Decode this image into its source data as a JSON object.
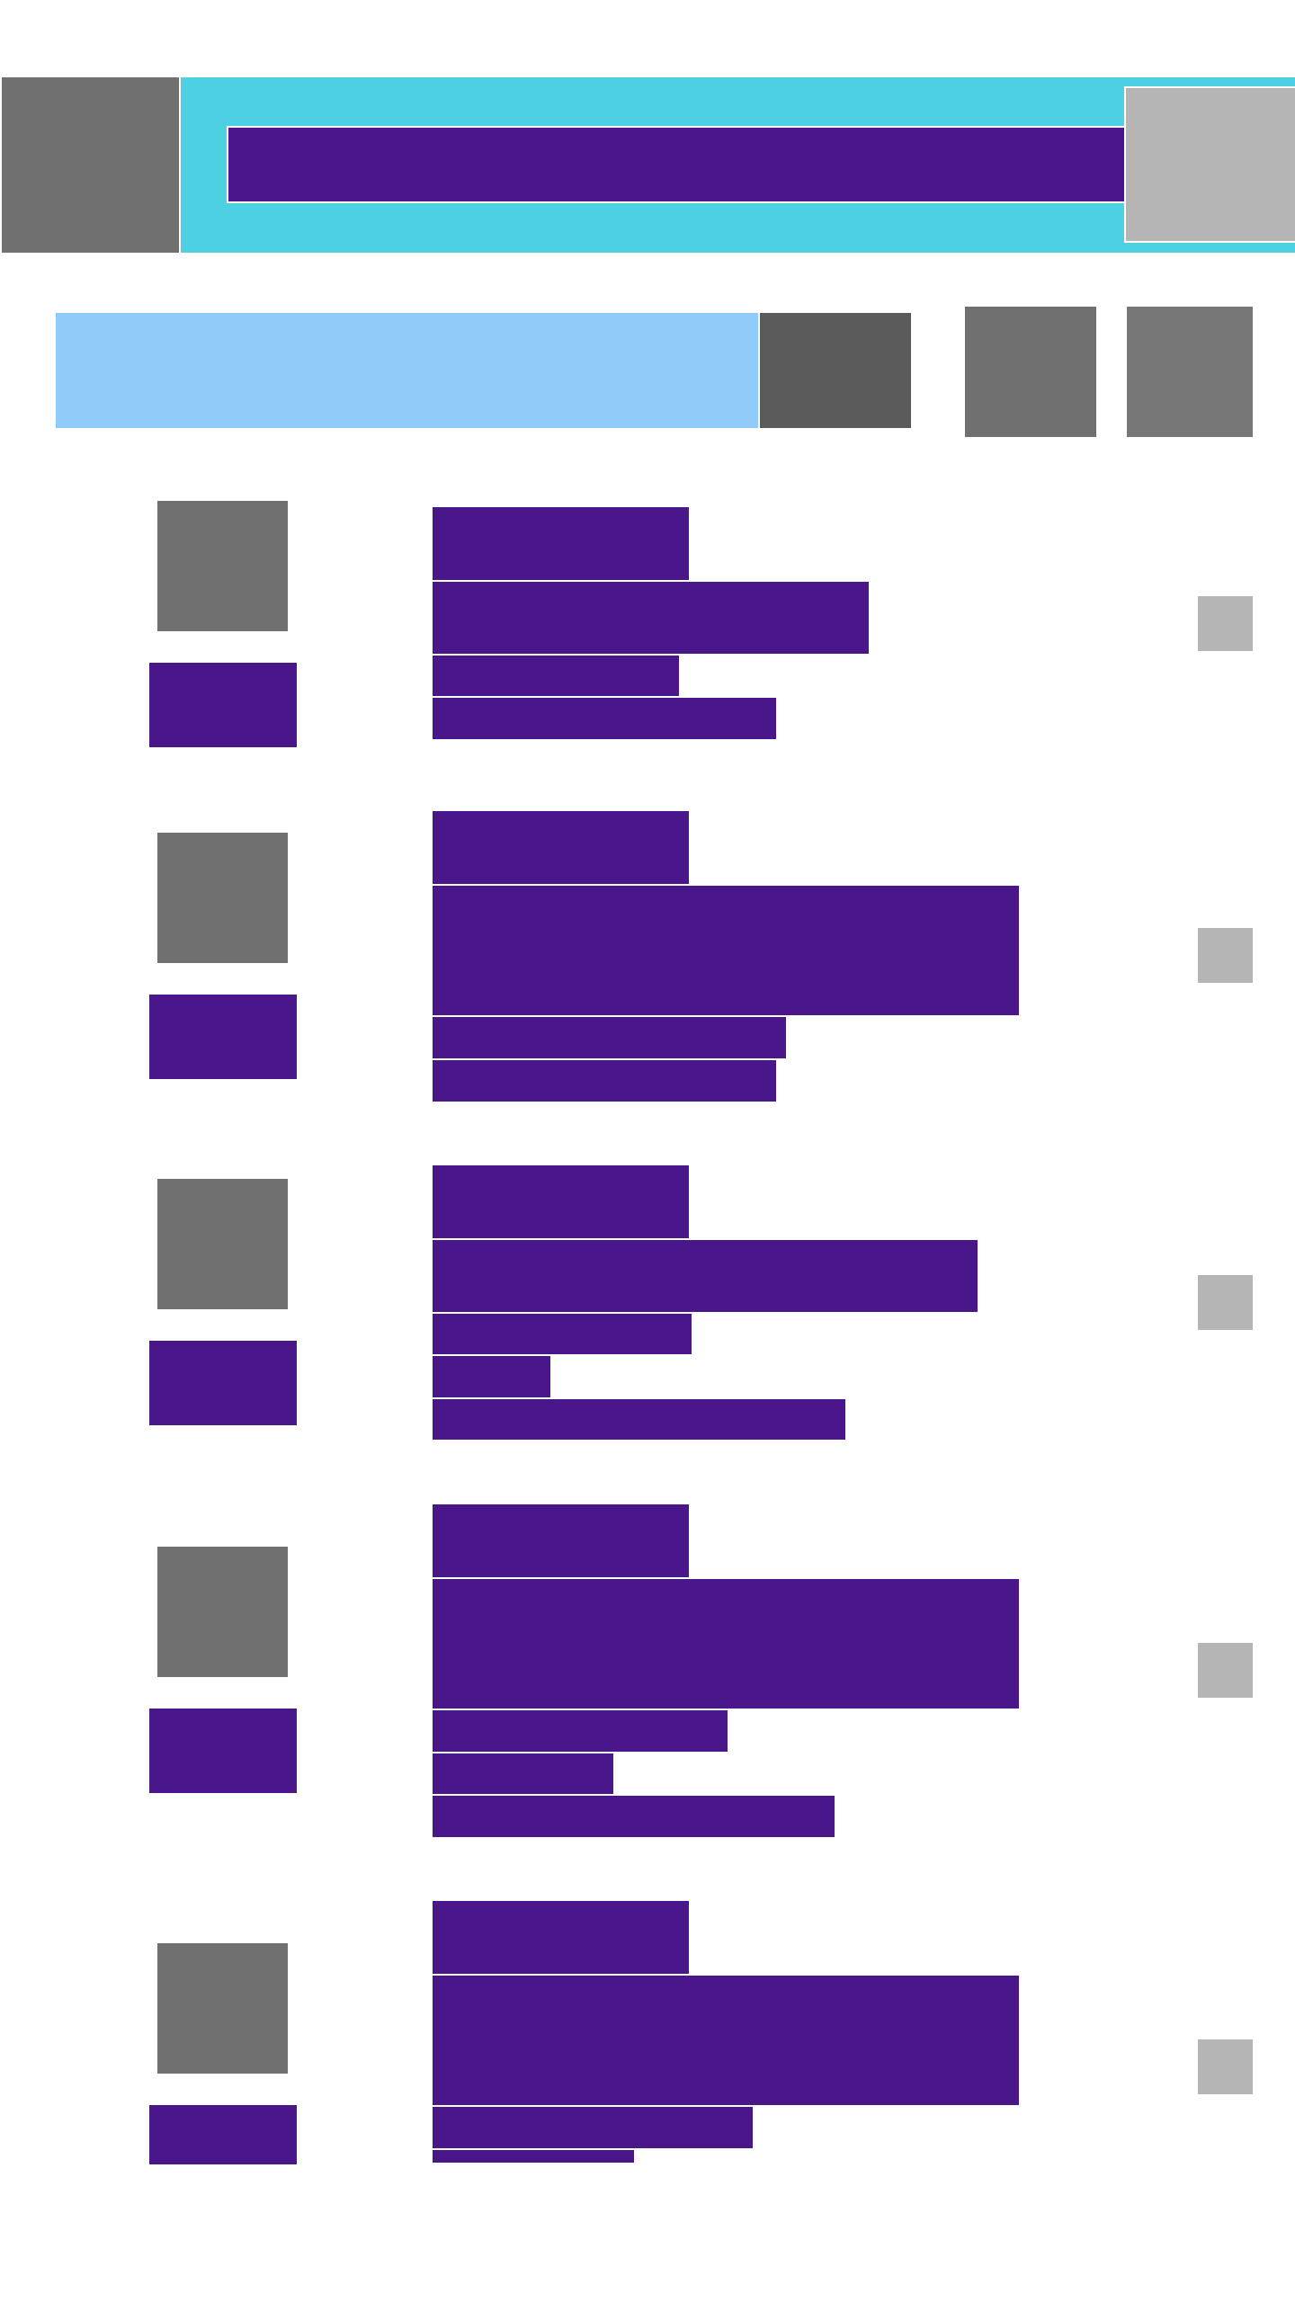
{
  "colors": {
    "toolbar_bg": "#4dd0e1",
    "search_bg": "#90caf9",
    "block": "#4a178a",
    "icon": "#707070",
    "icon_dark": "#5a5a5a",
    "icon_light": "#b5b5b5",
    "page_bg": "#ffffff"
  },
  "toolbar": {
    "nav_icon": "menu-icon",
    "action_icon": "overflow-icon"
  },
  "filter_bar": {
    "search_icon": "search-icon",
    "sort_icon": "sort-icon",
    "view_icon": "view-icon"
  },
  "items": [
    {
      "thumb_icon": "thumbnail-icon",
      "badge_lines": 1,
      "text_lines": 4,
      "action_icon": "more-icon"
    },
    {
      "thumb_icon": "thumbnail-icon",
      "badge_lines": 1,
      "text_lines": 4,
      "action_icon": "more-icon"
    },
    {
      "thumb_icon": "thumbnail-icon",
      "badge_lines": 1,
      "text_lines": 5,
      "action_icon": "more-icon"
    },
    {
      "thumb_icon": "thumbnail-icon",
      "badge_lines": 1,
      "text_lines": 5,
      "action_icon": "more-icon"
    },
    {
      "thumb_icon": "thumbnail-icon",
      "badge_lines": 1,
      "text_lines": 4,
      "action_icon": "more-icon"
    }
  ]
}
